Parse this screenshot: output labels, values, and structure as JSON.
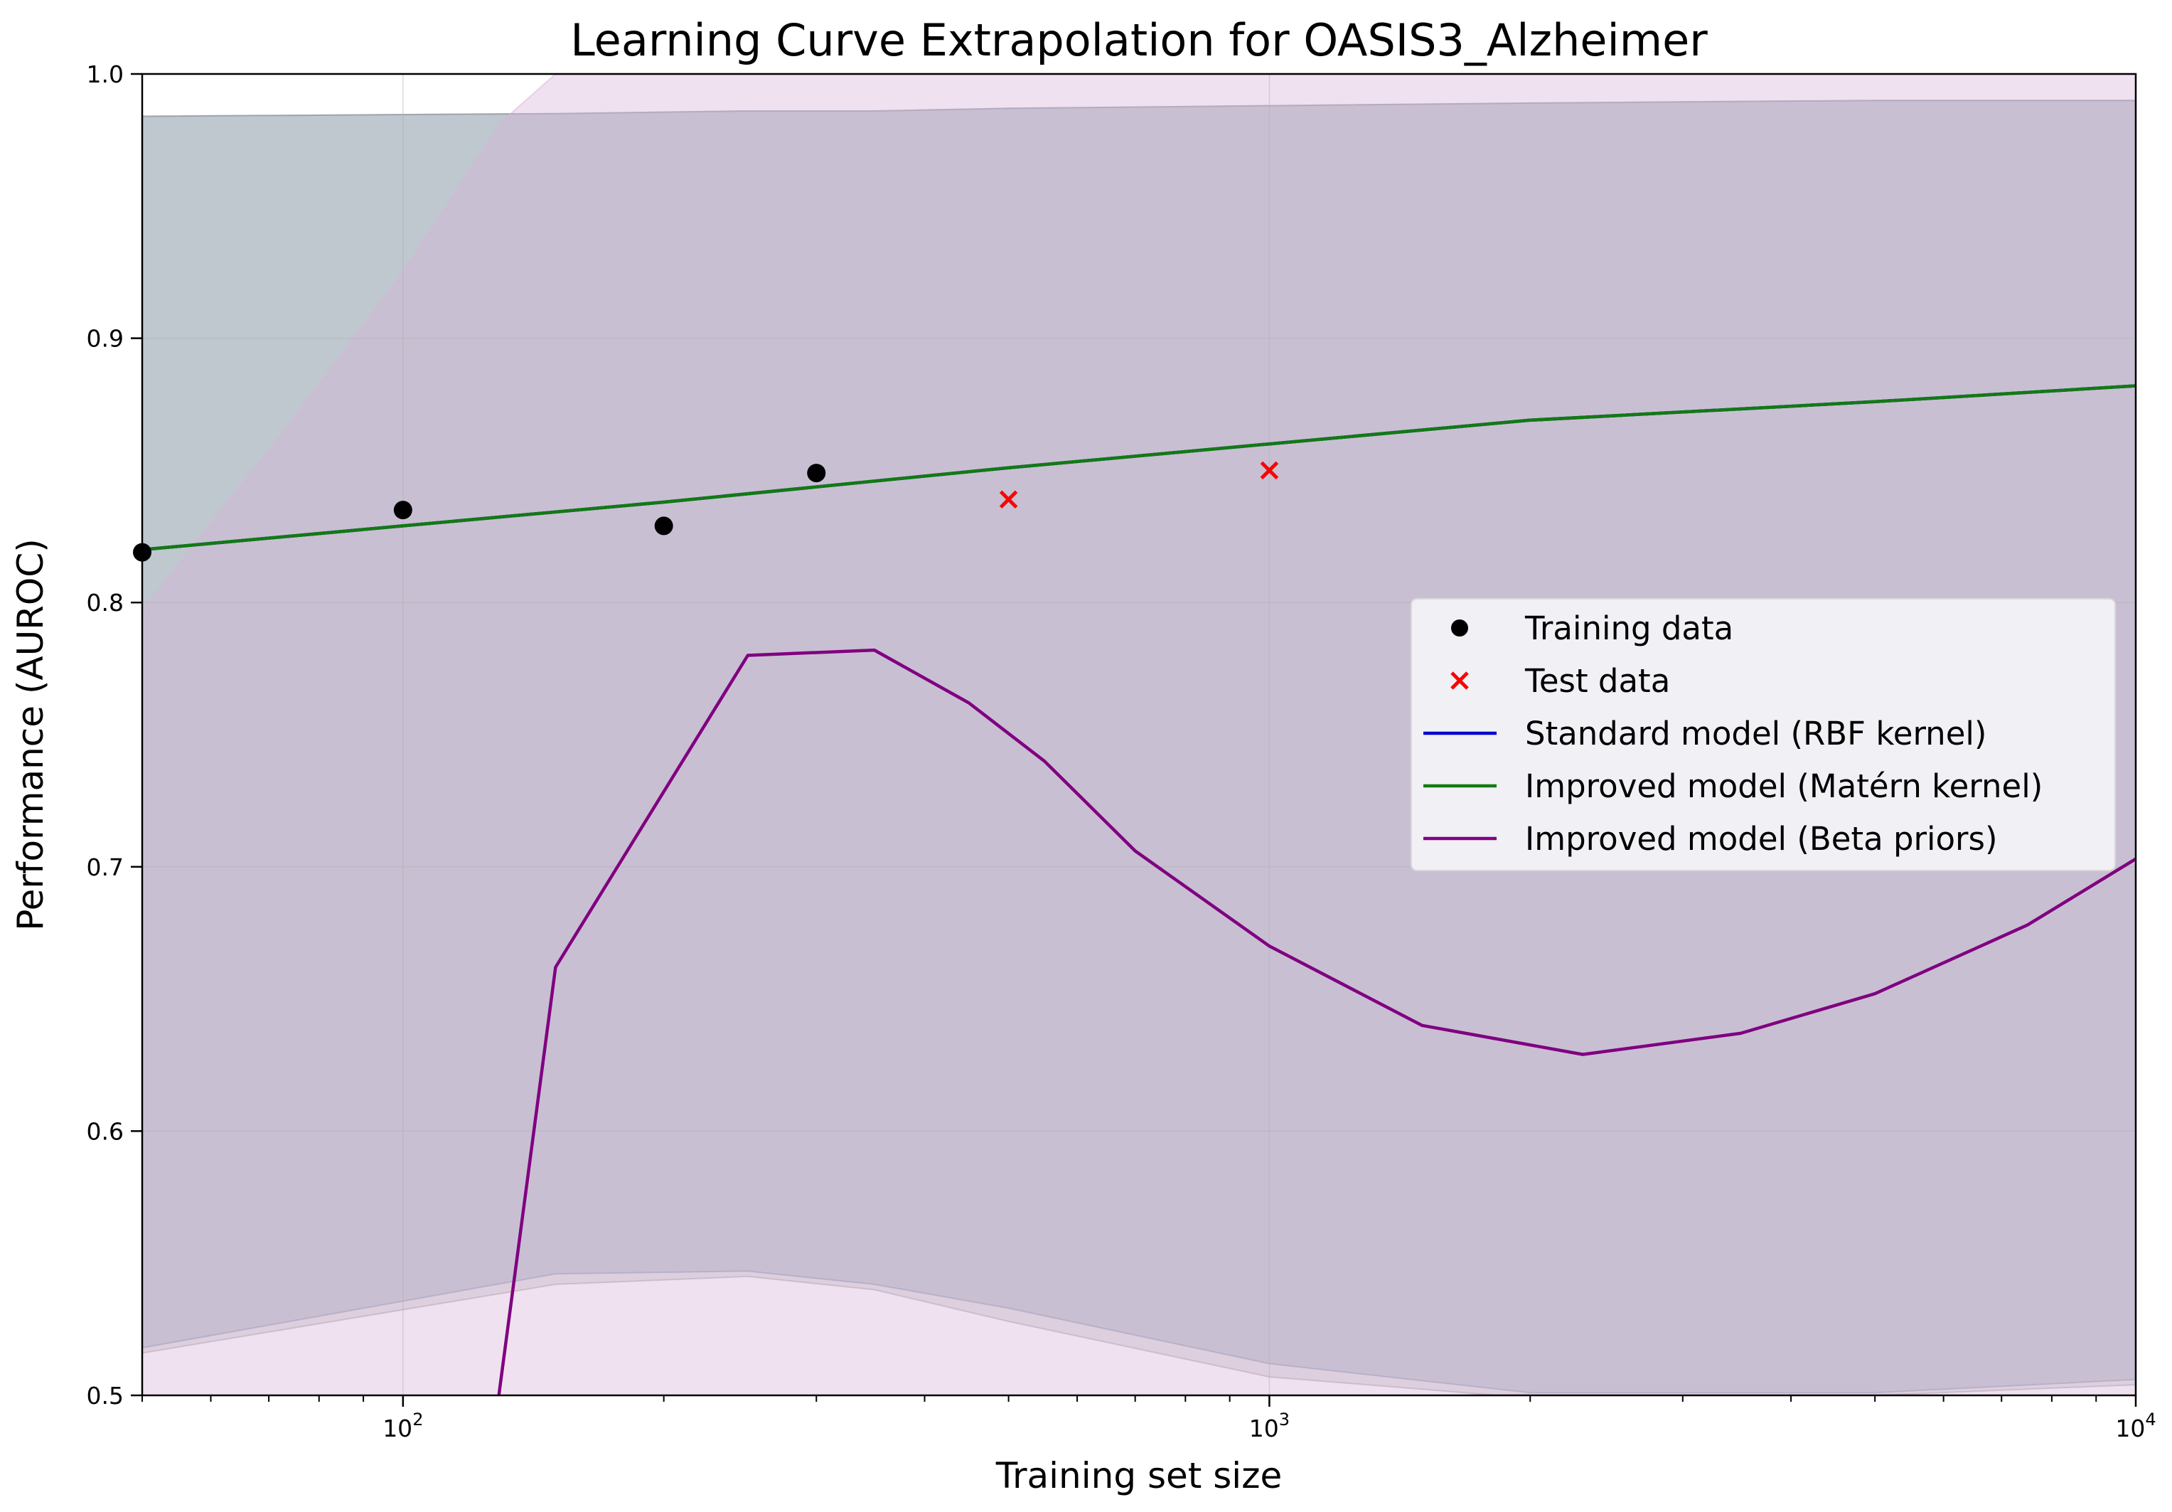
{
  "chart_data": {
    "type": "line",
    "title": "Learning Curve Extrapolation for OASIS3_Alzheimer",
    "xlabel": "Training set size",
    "ylabel": "Performance (AUROC)",
    "x_scale": "log",
    "xlim": [
      50,
      10000
    ],
    "ylim": [
      0.5,
      1.0
    ],
    "grid": true,
    "legend_position": "center-right",
    "x_major_ticks": [
      {
        "value": 100,
        "base": "10",
        "exp": "2"
      },
      {
        "value": 1000,
        "base": "10",
        "exp": "3"
      },
      {
        "value": 10000,
        "base": "10",
        "exp": "4"
      }
    ],
    "y_ticks": [
      {
        "value": 0.5,
        "label": "0.5"
      },
      {
        "value": 0.6,
        "label": "0.6"
      },
      {
        "value": 0.7,
        "label": "0.7"
      },
      {
        "value": 0.8,
        "label": "0.8"
      },
      {
        "value": 0.9,
        "label": "0.9"
      },
      {
        "value": 1.0,
        "label": "1.0"
      }
    ],
    "bands": [
      {
        "series": "Standard model (RBF kernel)",
        "color": "#5f86a9",
        "opacity": 0.3,
        "x": [
          50,
          150,
          250,
          350,
          500,
          1000,
          2000,
          5000,
          10000
        ],
        "upper": [
          0.984,
          0.985,
          0.986,
          0.986,
          0.987,
          0.988,
          0.989,
          0.99,
          0.99
        ],
        "lower": [
          0.518,
          0.546,
          0.547,
          0.542,
          0.533,
          0.512,
          0.501,
          0.501,
          0.506
        ]
      },
      {
        "series": "Improved model (Matérn kernel)",
        "color": "#9a9a9a",
        "opacity": 0.3,
        "x": [
          50,
          150,
          250,
          350,
          500,
          1000,
          2000,
          5000,
          10000
        ],
        "upper": [
          0.984,
          0.985,
          0.986,
          0.986,
          0.987,
          0.988,
          0.989,
          0.99,
          0.99
        ],
        "lower": [
          0.516,
          0.542,
          0.545,
          0.54,
          0.528,
          0.507,
          0.499,
          0.5,
          0.504
        ]
      },
      {
        "series": "Improved model (Beta priors)",
        "color": "#d9b3da",
        "opacity": 0.4,
        "x": [
          50,
          75,
          100,
          130,
          150,
          250,
          350,
          500,
          1000,
          2000,
          5000,
          10000
        ],
        "upper": [
          0.797,
          0.87,
          0.925,
          0.982,
          1.0,
          1.0,
          1.0,
          1.0,
          1.0,
          1.0,
          1.0,
          1.0
        ],
        "lower": [
          0.5,
          0.5,
          0.5,
          0.5,
          0.5,
          0.5,
          0.5,
          0.5,
          0.5,
          0.5,
          0.5,
          0.5
        ]
      }
    ],
    "series": [
      {
        "name": "Training data",
        "type": "scatter",
        "marker": "circle",
        "color": "#000000",
        "x": [
          50,
          100,
          200,
          300
        ],
        "y": [
          0.819,
          0.835,
          0.829,
          0.849
        ]
      },
      {
        "name": "Test data",
        "type": "scatter",
        "marker": "x",
        "color": "#ff0000",
        "x": [
          500,
          1000
        ],
        "y": [
          0.839,
          0.85
        ]
      },
      {
        "name": "Standard model (RBF kernel)",
        "type": "line",
        "color": "#0000cc",
        "x": [
          50,
          100,
          200,
          500,
          1000,
          2000,
          5000,
          10000
        ],
        "y": [
          0.82,
          0.829,
          0.838,
          0.851,
          0.86,
          0.869,
          0.876,
          0.882
        ]
      },
      {
        "name": "Improved model (Matérn kernel)",
        "type": "line",
        "color": "#127a12",
        "x": [
          50,
          100,
          200,
          500,
          1000,
          2000,
          5000,
          10000
        ],
        "y": [
          0.82,
          0.829,
          0.838,
          0.851,
          0.86,
          0.869,
          0.876,
          0.882
        ]
      },
      {
        "name": "Improved model (Beta priors)",
        "type": "line",
        "color": "#800080",
        "x": [
          122,
          150,
          250,
          350,
          450,
          550,
          700,
          1000,
          1500,
          2300,
          3500,
          5000,
          7500,
          10000
        ],
        "y": [
          0.44,
          0.662,
          0.78,
          0.782,
          0.762,
          0.74,
          0.706,
          0.67,
          0.64,
          0.629,
          0.637,
          0.652,
          0.678,
          0.703
        ]
      }
    ],
    "legend": [
      {
        "label": "Training data",
        "kind": "circle",
        "color": "#000000"
      },
      {
        "label": "Test data",
        "kind": "x",
        "color": "#ff0000"
      },
      {
        "label": "Standard model (RBF kernel)",
        "kind": "line",
        "color": "#0000cc"
      },
      {
        "label": "Improved model (Matérn kernel)",
        "kind": "line",
        "color": "#127a12"
      },
      {
        "label": "Improved model (Beta priors)",
        "kind": "line",
        "color": "#800080"
      }
    ]
  }
}
